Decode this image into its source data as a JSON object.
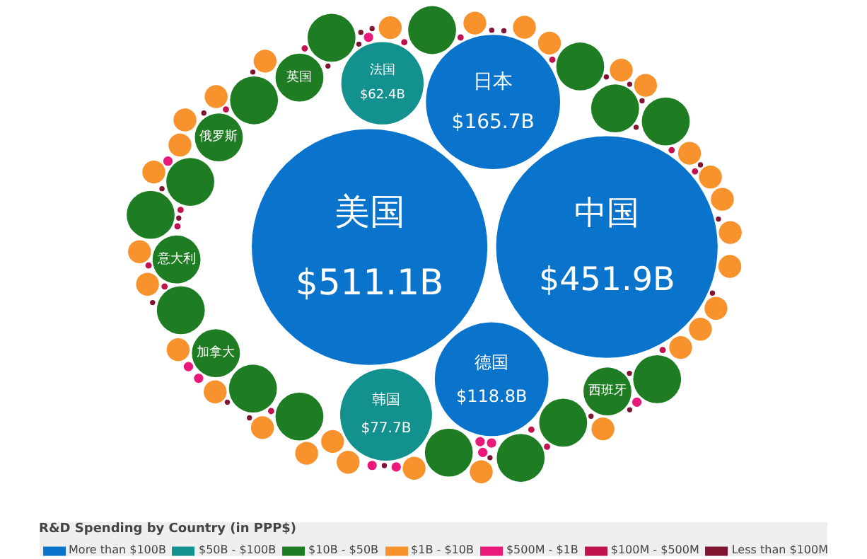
{
  "chart_data": {
    "type": "other",
    "legend_title": "R&D Spending by Country (in PPP$)",
    "legend": "bottom",
    "categories": [
      "美国",
      "中国",
      "日本",
      "德国",
      "韩国",
      "法国",
      "英国",
      "俄罗斯",
      "意大利",
      "加拿大",
      "西班牙",
      null,
      null,
      null,
      null,
      null,
      null,
      null,
      null,
      null,
      null,
      null,
      null,
      null,
      null,
      null,
      null,
      null,
      null,
      null,
      null,
      null,
      null,
      null,
      null,
      null,
      null,
      null,
      null,
      null,
      null,
      null,
      null,
      null,
      null,
      null,
      null,
      null,
      null,
      null,
      null,
      null,
      null,
      null,
      null,
      null,
      null,
      null,
      null,
      null,
      null,
      null,
      null,
      null,
      null,
      null,
      null,
      null,
      null,
      null,
      null,
      null,
      null,
      null,
      null,
      null,
      null,
      null,
      null,
      null,
      null,
      null,
      null,
      null,
      null,
      null,
      null,
      null,
      null,
      null,
      null,
      null,
      null,
      null,
      null,
      null,
      null,
      null,
      null,
      null,
      null,
      null,
      null,
      null,
      null,
      null
    ],
    "colors": [
      "#0a74cc",
      "#0a74cc",
      "#0a74cc",
      "#0a74cc",
      "#13918f",
      "#13918f",
      "#1e7d22",
      "#1e7d22",
      "#1e7d22",
      "#1e7d22",
      "#1e7d22",
      "#1e7d22",
      "#1e7d22",
      "#1e7d22",
      "#1e7d22",
      "#1e7d22",
      "#1e7d22",
      "#1e7d22",
      "#1e7d22",
      "#1e7d22",
      "#1e7d22",
      "#1e7d22",
      "#1e7d22",
      "#1e7d22",
      "#1e7d22",
      "#1e7d22",
      "#f7922c",
      "#f7922c",
      "#f7922c",
      "#f7922c",
      "#f7922c",
      "#f7922c",
      "#f7922c",
      "#f7922c",
      "#f7922c",
      "#f7922c",
      "#f7922c",
      "#f7922c",
      "#f7922c",
      "#f7922c",
      "#f7922c",
      "#f7922c",
      "#f7922c",
      "#f7922c",
      "#f7922c",
      "#f7922c",
      "#f7922c",
      "#f7922c",
      "#f7922c",
      "#f7922c",
      "#f7922c",
      "#f7922c",
      "#f7922c",
      "#f7922c",
      "#f7922c",
      "#f7922c",
      "#e8197a",
      "#e8197a",
      "#e8197a",
      "#e8197a",
      "#e8197a",
      "#e8197a",
      "#e8197a",
      "#e8197a",
      "#e8197a",
      "#e8197a",
      "#c2124e",
      "#c2124e",
      "#c2124e",
      "#c2124e",
      "#c2124e",
      "#c2124e",
      "#c2124e",
      "#c2124e",
      "#c2124e",
      "#c2124e",
      "#c2124e",
      "#c2124e",
      "#c2124e",
      "#c2124e",
      "#c2124e",
      "#7f1530",
      "#7f1530",
      "#7f1530",
      "#7f1530",
      "#7f1530",
      "#7f1530",
      "#7f1530",
      "#7f1530",
      "#7f1530",
      "#7f1530",
      "#7f1530",
      "#7f1530",
      "#7f1530",
      "#7f1530",
      "#7f1530",
      "#7f1530",
      "#7f1530",
      "#7f1530",
      "#7f1530",
      "#7f1530",
      "#7f1530",
      "#7f1530",
      "#7f1530",
      "#7f1530",
      "#7f1530"
    ],
    "series": [
      {
        "name": "More than $100B",
        "color": "#0a74cc",
        "values": [
          511.1,
          451.9,
          165.7,
          118.8,
          null,
          null,
          null,
          null,
          null,
          null,
          null,
          null,
          null,
          null,
          null,
          null,
          null,
          null,
          null,
          null,
          null,
          null,
          null,
          null,
          null,
          null,
          null,
          null,
          null,
          null,
          null,
          null,
          null,
          null,
          null,
          null,
          null,
          null,
          null,
          null,
          null,
          null,
          null,
          null,
          null,
          null,
          null,
          null,
          null,
          null,
          null,
          null,
          null,
          null,
          null,
          null,
          null,
          null,
          null,
          null,
          null,
          null,
          null,
          null,
          null,
          null,
          null,
          null,
          null,
          null,
          null,
          null,
          null,
          null,
          null,
          null,
          null,
          null,
          null,
          null,
          null,
          null,
          null,
          null,
          null,
          null,
          null,
          null,
          null,
          null,
          null,
          null,
          null,
          null,
          null,
          null,
          null,
          null,
          null,
          null,
          null,
          null,
          null,
          null,
          null,
          null
        ],
        "value_labels": [
          "$511.1B",
          "$451.9B",
          "$165.7B",
          "$118.8B",
          null,
          null,
          null,
          null,
          null,
          null,
          null,
          null,
          null,
          null,
          null,
          null,
          null,
          null,
          null,
          null,
          null,
          null,
          null,
          null,
          null,
          null,
          null,
          null,
          null,
          null,
          null,
          null,
          null,
          null,
          null,
          null,
          null,
          null,
          null,
          null,
          null,
          null,
          null,
          null,
          null,
          null,
          null,
          null,
          null,
          null,
          null,
          null,
          null,
          null,
          null,
          null,
          null,
          null,
          null,
          null,
          null,
          null,
          null,
          null,
          null,
          null,
          null,
          null,
          null,
          null,
          null,
          null,
          null,
          null,
          null,
          null,
          null,
          null,
          null,
          null,
          null,
          null,
          null,
          null,
          null,
          null,
          null,
          null,
          null,
          null,
          null,
          null,
          null,
          null,
          null,
          null,
          null,
          null,
          null,
          null,
          null,
          null,
          null,
          null,
          null,
          null
        ]
      },
      {
        "name": "$50B - $100B",
        "color": "#13918f",
        "values": [
          null,
          null,
          null,
          null,
          77.7,
          62.4,
          null,
          null,
          null,
          null,
          null,
          null,
          null,
          null,
          null,
          null,
          null,
          null,
          null,
          null,
          null,
          null,
          null,
          null,
          null,
          null,
          null,
          null,
          null,
          null,
          null,
          null,
          null,
          null,
          null,
          null,
          null,
          null,
          null,
          null,
          null,
          null,
          null,
          null,
          null,
          null,
          null,
          null,
          null,
          null,
          null,
          null,
          null,
          null,
          null,
          null,
          null,
          null,
          null,
          null,
          null,
          null,
          null,
          null,
          null,
          null,
          null,
          null,
          null,
          null,
          null,
          null,
          null,
          null,
          null,
          null,
          null,
          null,
          null,
          null,
          null,
          null,
          null,
          null,
          null,
          null,
          null,
          null,
          null,
          null,
          null,
          null,
          null,
          null,
          null,
          null,
          null,
          null,
          null,
          null,
          null,
          null,
          null,
          null,
          null,
          null
        ],
        "value_labels": [
          null,
          null,
          null,
          null,
          "$77.7B",
          "$62.4B",
          null,
          null,
          null,
          null,
          null,
          null,
          null,
          null,
          null,
          null,
          null,
          null,
          null,
          null,
          null,
          null,
          null,
          null,
          null,
          null,
          null,
          null,
          null,
          null,
          null,
          null,
          null,
          null,
          null,
          null,
          null,
          null,
          null,
          null,
          null,
          null,
          null,
          null,
          null,
          null,
          null,
          null,
          null,
          null,
          null,
          null,
          null,
          null,
          null,
          null,
          null,
          null,
          null,
          null,
          null,
          null,
          null,
          null,
          null,
          null,
          null,
          null,
          null,
          null,
          null,
          null,
          null,
          null,
          null,
          null,
          null,
          null,
          null,
          null,
          null,
          null,
          null,
          null,
          null,
          null,
          null,
          null,
          null,
          null,
          null,
          null,
          null,
          null,
          null,
          null,
          null,
          null,
          null,
          null,
          null,
          null,
          null,
          null,
          null,
          null
        ]
      },
      {
        "name": "$10B - $50B",
        "color": "#1e7d22",
        "values": [
          null,
          null,
          null,
          null,
          null,
          null,
          null,
          null,
          null,
          null,
          null,
          null,
          null,
          null,
          null,
          null,
          null,
          null,
          null,
          null,
          null,
          null,
          null,
          null,
          null,
          null,
          null,
          null,
          null,
          null,
          null,
          null,
          null,
          null,
          null,
          null,
          null,
          null,
          null,
          null,
          null,
          null,
          null,
          null,
          null,
          null,
          null,
          null,
          null,
          null,
          null,
          null,
          null,
          null,
          null,
          null,
          null,
          null,
          null,
          null,
          null,
          null,
          null,
          null,
          null,
          null,
          null,
          null,
          null,
          null,
          null,
          null,
          null,
          null,
          null,
          null,
          null,
          null,
          null,
          null,
          null,
          null,
          null,
          null,
          null,
          null,
          null,
          null,
          null,
          null,
          null,
          null,
          null,
          null,
          null,
          null,
          null,
          null,
          null,
          null,
          null,
          null,
          null,
          null,
          null,
          null
        ]
      },
      {
        "name": "$1B - $10B",
        "color": "#f7922c",
        "values": [
          null,
          null,
          null,
          null,
          null,
          null,
          null,
          null,
          null,
          null,
          null,
          null,
          null,
          null,
          null,
          null,
          null,
          null,
          null,
          null,
          null,
          null,
          null,
          null,
          null,
          null,
          null,
          null,
          null,
          null,
          null,
          null,
          null,
          null,
          null,
          null,
          null,
          null,
          null,
          null,
          null,
          null,
          null,
          null,
          null,
          null,
          null,
          null,
          null,
          null,
          null,
          null,
          null,
          null,
          null,
          null,
          null,
          null,
          null,
          null,
          null,
          null,
          null,
          null,
          null,
          null,
          null,
          null,
          null,
          null,
          null,
          null,
          null,
          null,
          null,
          null,
          null,
          null,
          null,
          null,
          null,
          null,
          null,
          null,
          null,
          null,
          null,
          null,
          null,
          null,
          null,
          null,
          null,
          null,
          null,
          null,
          null,
          null,
          null,
          null,
          null,
          null,
          null,
          null,
          null,
          null
        ]
      },
      {
        "name": "$500M - $1B",
        "color": "#e8197a",
        "values": [
          null,
          null,
          null,
          null,
          null,
          null,
          null,
          null,
          null,
          null,
          null,
          null,
          null,
          null,
          null,
          null,
          null,
          null,
          null,
          null,
          null,
          null,
          null,
          null,
          null,
          null,
          null,
          null,
          null,
          null,
          null,
          null,
          null,
          null,
          null,
          null,
          null,
          null,
          null,
          null,
          null,
          null,
          null,
          null,
          null,
          null,
          null,
          null,
          null,
          null,
          null,
          null,
          null,
          null,
          null,
          null,
          null,
          null,
          null,
          null,
          null,
          null,
          null,
          null,
          null,
          null,
          null,
          null,
          null,
          null,
          null,
          null,
          null,
          null,
          null,
          null,
          null,
          null,
          null,
          null,
          null,
          null,
          null,
          null,
          null,
          null,
          null,
          null,
          null,
          null,
          null,
          null,
          null,
          null,
          null,
          null,
          null,
          null,
          null,
          null,
          null,
          null,
          null,
          null,
          null,
          null
        ]
      },
      {
        "name": "$100M - $500M",
        "color": "#c2124e",
        "values": [
          null,
          null,
          null,
          null,
          null,
          null,
          null,
          null,
          null,
          null,
          null,
          null,
          null,
          null,
          null,
          null,
          null,
          null,
          null,
          null,
          null,
          null,
          null,
          null,
          null,
          null,
          null,
          null,
          null,
          null,
          null,
          null,
          null,
          null,
          null,
          null,
          null,
          null,
          null,
          null,
          null,
          null,
          null,
          null,
          null,
          null,
          null,
          null,
          null,
          null,
          null,
          null,
          null,
          null,
          null,
          null,
          null,
          null,
          null,
          null,
          null,
          null,
          null,
          null,
          null,
          null,
          null,
          null,
          null,
          null,
          null,
          null,
          null,
          null,
          null,
          null,
          null,
          null,
          null,
          null,
          null,
          null,
          null,
          null,
          null,
          null,
          null,
          null,
          null,
          null,
          null,
          null,
          null,
          null,
          null,
          null,
          null,
          null,
          null,
          null,
          null,
          null,
          null,
          null,
          null,
          null
        ]
      },
      {
        "name": "Less than $100M",
        "color": "#7f1530",
        "values": [
          null,
          null,
          null,
          null,
          null,
          null,
          null,
          null,
          null,
          null,
          null,
          null,
          null,
          null,
          null,
          null,
          null,
          null,
          null,
          null,
          null,
          null,
          null,
          null,
          null,
          null,
          null,
          null,
          null,
          null,
          null,
          null,
          null,
          null,
          null,
          null,
          null,
          null,
          null,
          null,
          null,
          null,
          null,
          null,
          null,
          null,
          null,
          null,
          null,
          null,
          null,
          null,
          null,
          null,
          null,
          null,
          null,
          null,
          null,
          null,
          null,
          null,
          null,
          null,
          null,
          null,
          null,
          null,
          null,
          null,
          null,
          null,
          null,
          null,
          null,
          null,
          null,
          null,
          null,
          null,
          null,
          null,
          null,
          null,
          null,
          null,
          null,
          null,
          null,
          null,
          null,
          null,
          null,
          null,
          null,
          null,
          null,
          null,
          null,
          null,
          null,
          null,
          null,
          null,
          null,
          null
        ]
      }
    ]
  }
}
